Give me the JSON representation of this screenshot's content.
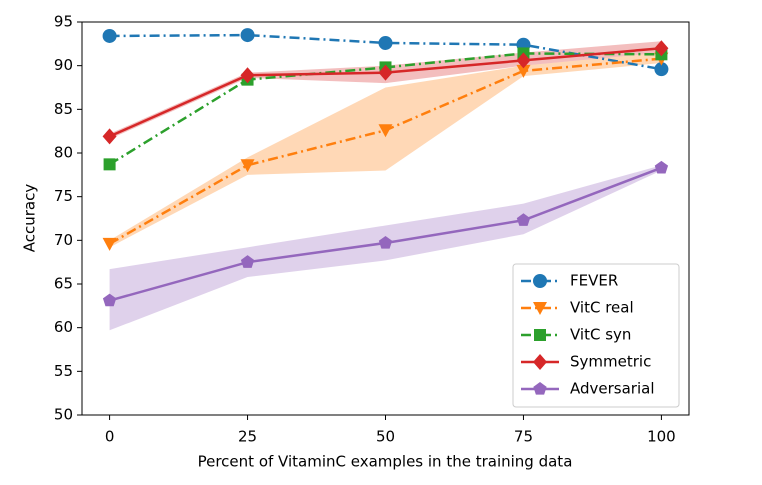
{
  "chart_data": {
    "type": "line",
    "xlabel": "Percent of VitaminC examples in the training data",
    "ylabel": "Accuracy",
    "x": [
      0,
      25,
      50,
      75,
      100
    ],
    "xlim": [
      -5,
      105
    ],
    "xticks": [
      0,
      25,
      50,
      75,
      100
    ],
    "ylim": [
      50,
      95
    ],
    "yticks": [
      50,
      55,
      60,
      65,
      70,
      75,
      80,
      85,
      90,
      95
    ],
    "legend": "lower right",
    "series": [
      {
        "name": "FEVER",
        "color": "#1f77b4",
        "linestyle": "dashdot",
        "marker": "circle",
        "values": [
          93.4,
          93.5,
          92.6,
          92.4,
          89.6
        ]
      },
      {
        "name": "VitC real",
        "color": "#ff7f0e",
        "linestyle": "dashdot",
        "marker": "triangle-down",
        "values": [
          69.6,
          78.6,
          82.6,
          89.4,
          90.8
        ],
        "lower": [
          69.2,
          77.5,
          78.0,
          88.8,
          90.3
        ],
        "upper": [
          70.0,
          79.5,
          87.5,
          90.0,
          91.5
        ]
      },
      {
        "name": "VitC syn",
        "color": "#2ca02c",
        "linestyle": "dashdot",
        "marker": "square",
        "values": [
          78.7,
          88.4,
          89.8,
          91.4,
          91.3
        ]
      },
      {
        "name": "Symmetric",
        "color": "#d62728",
        "linestyle": "solid",
        "marker": "diamond",
        "values": [
          81.9,
          88.9,
          89.2,
          90.6,
          92.0
        ],
        "lower": [
          81.6,
          88.6,
          88.0,
          90.0,
          91.5
        ],
        "upper": [
          82.2,
          89.2,
          90.0,
          91.5,
          92.8
        ]
      },
      {
        "name": "Adversarial",
        "color": "#9467bd",
        "linestyle": "solid",
        "marker": "pentagon",
        "values": [
          63.1,
          67.5,
          69.7,
          72.3,
          78.3
        ],
        "lower": [
          59.7,
          65.8,
          67.7,
          70.7,
          78.0
        ],
        "upper": [
          66.7,
          69.2,
          71.7,
          74.2,
          78.6
        ]
      }
    ]
  }
}
